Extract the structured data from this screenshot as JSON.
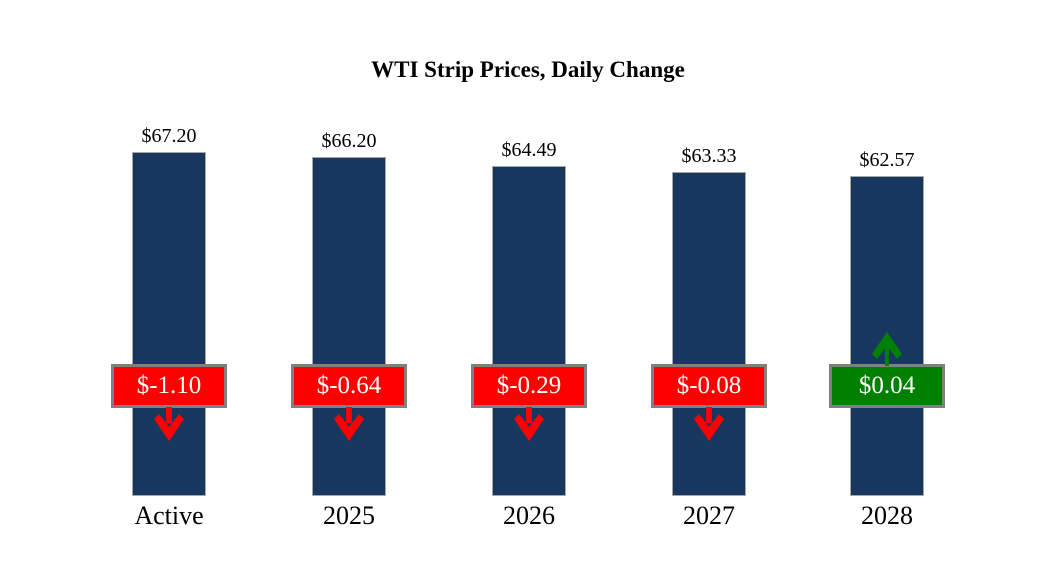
{
  "title": "WTI Strip Prices, Daily Change",
  "colors": {
    "bar": "#17375E",
    "bar_border": "#A6A6A6",
    "negative": "#FF0000",
    "positive": "#008000",
    "badge_border": "#808080",
    "badge_text": "#FFFFFF",
    "background": "#FFFFFF",
    "text": "#000000"
  },
  "chart_data": {
    "type": "bar",
    "title": "WTI Strip Prices, Daily Change",
    "categories": [
      "Active",
      "2025",
      "2026",
      "2027",
      "2028"
    ],
    "values": [
      67.2,
      66.2,
      64.49,
      63.33,
      62.57
    ],
    "value_labels": [
      "$67.20",
      "$66.20",
      "$64.49",
      "$63.33",
      "$62.57"
    ],
    "changes": [
      -1.1,
      -0.64,
      -0.29,
      -0.08,
      0.04
    ],
    "change_labels": [
      "$-1.10",
      "$-0.64",
      "$-0.29",
      "$-0.08",
      "$0.04"
    ],
    "xlabel": "",
    "ylabel": "",
    "ylim": [
      0,
      70
    ],
    "grid": false,
    "legend": false,
    "bar_color": "#17375E",
    "negative_badge_color": "#FF0000",
    "positive_badge_color": "#008000"
  }
}
